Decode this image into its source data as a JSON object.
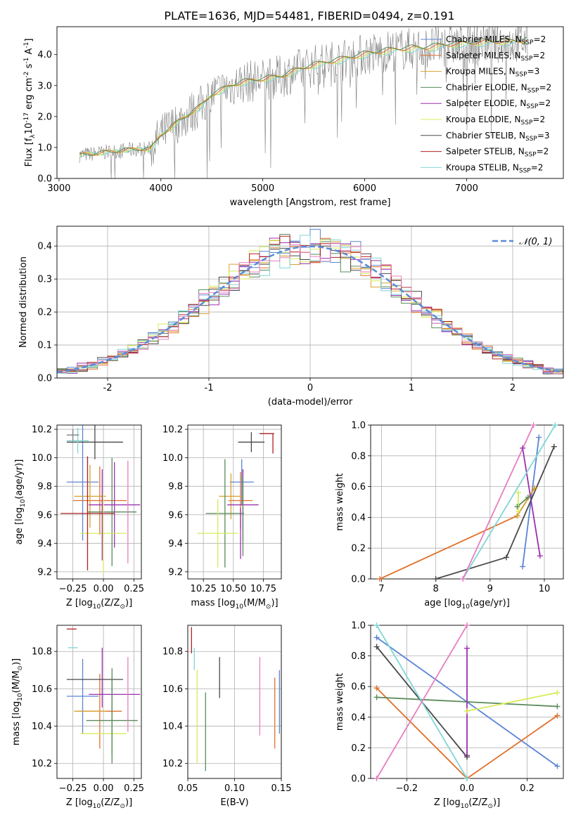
{
  "figure": {
    "title": "PLATE=1636, MJD=54481, FIBERID=0494, z=0.191"
  },
  "colors": {
    "chabrier_miles": "#5b84d6",
    "salpeter_miles": "#e0702b",
    "kroupa_miles": "#d9a030",
    "chabrier_elodie": "#5a8a5a",
    "salpeter_elodie": "#9b30b0",
    "kroupa_elodie": "#d6ec5a",
    "chabrier_stelib": "#4a4a4a",
    "salpeter_stelib": "#b02020",
    "kroupa_stelib": "#80d6d6",
    "pink": "#e57fbf",
    "data_grey": "#808080",
    "gaussian": "#5b8bd6"
  },
  "chart_data": [
    {
      "id": "spectrum",
      "type": "line",
      "title": "PLATE=1636, MJD=54481, FIBERID=0494, z=0.191",
      "xlabel": "wavelength [Angstrom, rest frame]",
      "ylabel": "Flux [f$_λ$10$^{-17}$ erg cm$^{-2}$ s$^{-1}$ A$^{-1}$]",
      "xlim": [
        2980,
        7950
      ],
      "ylim": [
        0,
        4.9
      ],
      "xticks": [
        3000,
        4000,
        5000,
        6000,
        7000
      ],
      "yticks": [
        0,
        1,
        2,
        3,
        4
      ],
      "grid": false,
      "legend_position": "top-right",
      "legend": [
        {
          "label": "Chabrier MILES, N",
          "sub": "SSP",
          "suffix": "=2",
          "color_key": "chabrier_miles"
        },
        {
          "label": "Salpeter MILES, N",
          "sub": "SSP",
          "suffix": "=2",
          "color_key": "salpeter_miles"
        },
        {
          "label": "Kroupa MILES, N",
          "sub": "SSP",
          "suffix": "=3",
          "color_key": "kroupa_miles"
        },
        {
          "label": "Chabrier ELODIE, N",
          "sub": "SSP",
          "suffix": "=2",
          "color_key": "chabrier_elodie"
        },
        {
          "label": "Salpeter ELODIE, N",
          "sub": "SSP",
          "suffix": "=2",
          "color_key": "salpeter_elodie"
        },
        {
          "label": "Kroupa ELODIE, N",
          "sub": "SSP",
          "suffix": "=2",
          "color_key": "kroupa_elodie"
        },
        {
          "label": "Chabrier STELIB, N",
          "sub": "SSP",
          "suffix": "=3",
          "color_key": "chabrier_stelib"
        },
        {
          "label": "Salpeter STELIB, N",
          "sub": "SSP",
          "suffix": "=2",
          "color_key": "salpeter_stelib"
        },
        {
          "label": "Kroupa STELIB, N",
          "sub": "SSP",
          "suffix": "=2",
          "color_key": "kroupa_stelib"
        }
      ],
      "model": {
        "x": [
          3200,
          3400,
          3600,
          3800,
          3900,
          4000,
          4200,
          4400,
          4500,
          4700,
          4800,
          5000,
          5200,
          5300,
          5500,
          5800,
          6000,
          6300,
          6500,
          6600,
          6800,
          7000,
          7200,
          7400,
          7600
        ],
        "y": [
          0.75,
          0.82,
          0.9,
          0.95,
          0.95,
          1.4,
          1.9,
          2.35,
          2.7,
          3.0,
          3.1,
          3.2,
          3.3,
          3.45,
          3.65,
          3.85,
          4.0,
          4.15,
          4.2,
          4.2,
          4.3,
          4.35,
          4.4,
          4.4,
          4.45
        ]
      }
    },
    {
      "id": "residuals",
      "type": "histogram",
      "xlabel": "(data-model)/error",
      "ylabel": "Normed distribution",
      "xlim": [
        -2.5,
        2.5
      ],
      "ylim": [
        0,
        0.46
      ],
      "xticks": [
        -2,
        -1,
        0,
        1,
        2
      ],
      "yticks": [
        0.0,
        0.1,
        0.2,
        0.3,
        0.4
      ],
      "grid": true,
      "legend_position": "top-right",
      "legend": [
        {
          "label": "𝒩(0, 1)",
          "color_key": "gaussian",
          "style": "dashed"
        }
      ],
      "bin_width": 0.1,
      "bin_start": -2.5
    },
    {
      "id": "age_vs_Z",
      "type": "errorbar",
      "xlabel": "Z [log$_{10}$(Z/Z$_⊙$)]",
      "ylabel": "age  [log$_{10}$(age/yr)]",
      "xlim": [
        -0.38,
        0.31
      ],
      "ylim": [
        9.15,
        10.23
      ],
      "xticks": [
        -0.25,
        0.0,
        0.25
      ],
      "xtick_labels": [
        "−0.25",
        "0.00",
        "0.25"
      ],
      "yticks": [
        9.2,
        9.4,
        9.6,
        9.8,
        10.0,
        10.2
      ],
      "grid": true,
      "points": [
        {
          "color_key": "chabrier_miles",
          "x": -0.17,
          "xerr": 0.13,
          "y": 9.83,
          "yerr": 0.41
        },
        {
          "color_key": "salpeter_miles",
          "x": -0.03,
          "xerr": 0.22,
          "y": 9.7,
          "yerr": 0.24
        },
        {
          "color_key": "kroupa_miles",
          "x": -0.11,
          "xerr": 0.13,
          "y": 9.73,
          "yerr": 0.22
        },
        {
          "color_key": "chabrier_elodie",
          "x": 0.07,
          "xerr": 0.2,
          "y": 9.62,
          "yerr": 0.38
        },
        {
          "color_key": "salpeter_elodie",
          "x": 0.09,
          "xerr": 0.21,
          "y": 9.67,
          "yerr": 0.3
        },
        {
          "color_key": "kroupa_elodie",
          "x": 0.0,
          "xerr": 0.19,
          "y": 9.47,
          "yerr": 0.28
        },
        {
          "color_key": "chabrier_stelib",
          "x": -0.07,
          "xerr": 0.23,
          "y": 10.11,
          "yerr": 0.12
        },
        {
          "color_key": "salpeter_stelib",
          "x": -0.13,
          "xerr": 0.22,
          "y": 9.61,
          "yerr": 0.4
        },
        {
          "color_key": "kroupa_stelib",
          "x": -0.21,
          "xerr": 0.09,
          "y": 10.12,
          "yerr": 0.09
        },
        {
          "color_key": "pink",
          "x": 0.2,
          "xerr": 0.0,
          "y": 9.62,
          "yerr": 0.36
        },
        {
          "color_key": "data_grey",
          "x": -0.25,
          "xerr": 0.05,
          "y": 10.16,
          "yerr": 0.04
        },
        {
          "color_key": "salpeter_elodie",
          "x": -0.01,
          "xerr": 0.0,
          "y": 9.6,
          "yerr": 0.32
        }
      ]
    },
    {
      "id": "age_vs_mass",
      "type": "errorbar",
      "xlabel": "mass [log$_{10}$(M/M$_⊙$)]",
      "ylabel": "",
      "xlim": [
        10.12,
        10.9
      ],
      "ylim": [
        9.15,
        10.23
      ],
      "xticks": [
        10.25,
        10.5,
        10.75
      ],
      "xtick_labels": [
        "10.25",
        "10.50",
        "10.75"
      ],
      "yticks": [
        9.2,
        9.4,
        9.6,
        9.8,
        10.0,
        10.2
      ],
      "grid": true,
      "points": [
        {
          "color_key": "chabrier_miles",
          "x": 10.57,
          "xerr": 0.1,
          "y": 9.83,
          "yerr": 0.16
        },
        {
          "color_key": "salpeter_miles",
          "x": 10.56,
          "xerr": 0.1,
          "y": 9.7,
          "yerr": 0.2
        },
        {
          "color_key": "kroupa_miles",
          "x": 10.48,
          "xerr": 0.1,
          "y": 9.73,
          "yerr": 0.16
        },
        {
          "color_key": "chabrier_elodie",
          "x": 10.43,
          "xerr": 0.16,
          "y": 9.61,
          "yerr": 0.38
        },
        {
          "color_key": "salpeter_elodie",
          "x": 10.58,
          "xerr": 0.13,
          "y": 9.67,
          "yerr": 0.25
        },
        {
          "color_key": "kroupa_elodie",
          "x": 10.37,
          "xerr": 0.17,
          "y": 9.47,
          "yerr": 0.24
        },
        {
          "color_key": "chabrier_stelib",
          "x": 10.65,
          "xerr": 0.11,
          "y": 10.11,
          "yerr": 0.07
        },
        {
          "color_key": "salpeter_stelib",
          "x": 10.83,
          "xerr": 0.0,
          "y": 10.1,
          "yerr": 0.07
        },
        {
          "color_key": "kroupa_stelib",
          "x": 10.77,
          "xerr": 0.06,
          "y": 10.17,
          "yerr": 0.0
        },
        {
          "color_key": "salpeter_stelib",
          "x": 10.78,
          "xerr": 0.06,
          "y": 10.17,
          "yerr": 0.0
        },
        {
          "color_key": "chabrier_elodie",
          "x": 10.58,
          "xerr": 0.0,
          "y": 9.59,
          "yerr": 0.28
        },
        {
          "color_key": "salpeter_elodie",
          "x": 10.56,
          "xerr": 0.0,
          "y": 9.47,
          "yerr": 0.18
        }
      ]
    },
    {
      "id": "weight_vs_age",
      "type": "line",
      "xlabel": "age  [log$_{10}$(age/yr)]",
      "ylabel": "mass weight",
      "xlim": [
        6.8,
        10.35
      ],
      "ylim": [
        0,
        1.0
      ],
      "xticks": [
        7,
        8,
        9,
        10
      ],
      "yticks": [
        0.0,
        0.2,
        0.4,
        0.6,
        0.8,
        1.0
      ],
      "grid": true,
      "series": [
        {
          "color_key": "chabrier_miles",
          "x": [
            9.6,
            9.9
          ],
          "y": [
            0.08,
            0.92
          ]
        },
        {
          "color_key": "salpeter_miles",
          "x": [
            6.97,
            9.5,
            9.82
          ],
          "y": [
            0.0,
            0.41,
            0.59
          ]
        },
        {
          "color_key": "kroupa_miles",
          "x": [
            9.5,
            9.82
          ],
          "y": [
            0.41,
            0.59
          ]
        },
        {
          "color_key": "chabrier_elodie",
          "x": [
            9.5,
            9.7
          ],
          "y": [
            0.47,
            0.53
          ]
        },
        {
          "color_key": "salpeter_elodie",
          "x": [
            9.6,
            9.92
          ],
          "y": [
            0.85,
            0.15
          ]
        },
        {
          "color_key": "kroupa_elodie",
          "x": [
            9.52,
            9.52
          ],
          "y": [
            0.44,
            0.56
          ]
        },
        {
          "color_key": "chabrier_stelib",
          "x": [
            8.0,
            9.3,
            10.18
          ],
          "y": [
            0.0,
            0.14,
            0.86
          ]
        },
        {
          "color_key": "kroupa_stelib",
          "x": [
            8.5,
            10.2
          ],
          "y": [
            0.0,
            1.0
          ]
        },
        {
          "color_key": "pink",
          "x": [
            8.5,
            9.8
          ],
          "y": [
            0.0,
            1.0
          ]
        }
      ]
    },
    {
      "id": "mass_vs_Z",
      "type": "errorbar",
      "xlabel": "Z [log$_{10}$(Z/Z$_⊙$)]",
      "ylabel": "mass [log$_{10}$(M/M$_⊙$)]",
      "xlim": [
        -0.38,
        0.31
      ],
      "ylim": [
        10.12,
        10.94
      ],
      "xticks": [
        -0.25,
        0.0,
        0.25
      ],
      "xtick_labels": [
        "−0.25",
        "0.00",
        "0.25"
      ],
      "yticks": [
        10.2,
        10.4,
        10.6,
        10.8
      ],
      "grid": true,
      "points": [
        {
          "color_key": "chabrier_miles",
          "x": -0.17,
          "xerr": 0.13,
          "y": 10.56,
          "yerr": 0.2
        },
        {
          "color_key": "salpeter_miles",
          "x": -0.03,
          "xerr": 0.18,
          "y": 10.48,
          "yerr": 0.2
        },
        {
          "color_key": "kroupa_miles",
          "x": -0.11,
          "xerr": 0.13,
          "y": 10.48,
          "yerr": 0.0
        },
        {
          "color_key": "chabrier_elodie",
          "x": 0.07,
          "xerr": 0.21,
          "y": 10.43,
          "yerr": 0.23
        },
        {
          "color_key": "salpeter_elodie",
          "x": 0.09,
          "xerr": 0.21,
          "y": 10.57,
          "yerr": 0.0
        },
        {
          "color_key": "kroupa_elodie",
          "x": 0.0,
          "xerr": 0.19,
          "y": 10.36,
          "yerr": 0.0
        },
        {
          "color_key": "chabrier_stelib",
          "x": -0.07,
          "xerr": 0.23,
          "y": 10.65,
          "yerr": 0.0
        },
        {
          "color_key": "salpeter_stelib",
          "x": -0.26,
          "xerr": 0.04,
          "y": 10.92,
          "yerr": 0.0
        },
        {
          "color_key": "kroupa_stelib",
          "x": -0.25,
          "xerr": 0.04,
          "y": 10.82,
          "yerr": 0.0
        },
        {
          "color_key": "pink",
          "x": 0.2,
          "xerr": 0.0,
          "y": 10.57,
          "yerr": 0.2
        },
        {
          "color_key": "salpeter_elodie",
          "x": -0.01,
          "xerr": 0.0,
          "y": 10.66,
          "yerr": 0.16
        },
        {
          "color_key": "chabrier_elodie",
          "x": 0.07,
          "xerr": 0.0,
          "y": 10.48,
          "yerr": 0.23
        }
      ]
    },
    {
      "id": "mass_vs_ebv",
      "type": "errorbar",
      "xlabel": "E(B-V)",
      "ylabel": "",
      "xlim": [
        0.05,
        0.15
      ],
      "ylim": [
        10.12,
        10.94
      ],
      "xticks": [
        0.05,
        0.1,
        0.15
      ],
      "xtick_labels": [
        "0.05",
        "0.10",
        "0.15"
      ],
      "yticks": [
        10.2,
        10.4,
        10.6,
        10.8
      ],
      "grid": true,
      "points": [
        {
          "color_key": "chabrier_miles",
          "x": 0.148,
          "xerr": 0.0,
          "y": 10.53,
          "yerr": 0.17
        },
        {
          "color_key": "salpeter_miles",
          "x": 0.143,
          "xerr": 0.0,
          "y": 10.47,
          "yerr": 0.19
        },
        {
          "color_key": "kroupa_elodie",
          "x": 0.06,
          "xerr": 0.0,
          "y": 10.45,
          "yerr": 0.25
        },
        {
          "color_key": "chabrier_elodie",
          "x": 0.069,
          "xerr": 0.0,
          "y": 10.37,
          "yerr": 0.21
        },
        {
          "color_key": "chabrier_stelib",
          "x": 0.084,
          "xerr": 0.0,
          "y": 10.66,
          "yerr": 0.11
        },
        {
          "color_key": "salpeter_stelib",
          "x": 0.054,
          "xerr": 0.0,
          "y": 10.86,
          "yerr": 0.07
        },
        {
          "color_key": "kroupa_stelib",
          "x": 0.057,
          "xerr": 0.0,
          "y": 10.76,
          "yerr": 0.06
        },
        {
          "color_key": "pink",
          "x": 0.127,
          "xerr": 0.0,
          "y": 10.56,
          "yerr": 0.21
        }
      ]
    },
    {
      "id": "weight_vs_Z",
      "type": "line",
      "xlabel": "Z [log$_{10}$(Z/Z$_⊙$)]",
      "ylabel": "mass weight",
      "xlim": [
        -0.32,
        0.32
      ],
      "ylim": [
        0,
        1.0
      ],
      "xticks": [
        -0.2,
        0.0,
        0.2
      ],
      "xtick_labels": [
        "−0.2",
        "0.0",
        "0.2"
      ],
      "yticks": [
        0.0,
        0.2,
        0.4,
        0.6,
        0.8,
        1.0
      ],
      "grid": true,
      "series": [
        {
          "color_key": "chabrier_miles",
          "x": [
            -0.3,
            0.3
          ],
          "y": [
            0.92,
            0.08
          ]
        },
        {
          "color_key": "salpeter_miles",
          "x": [
            -0.3,
            0.0,
            0.3
          ],
          "y": [
            0.59,
            0.0,
            0.41
          ]
        },
        {
          "color_key": "chabrier_elodie",
          "x": [
            -0.3,
            0.3
          ],
          "y": [
            0.53,
            0.47
          ]
        },
        {
          "color_key": "salpeter_elodie",
          "x": [
            0.0,
            0.0
          ],
          "y": [
            0.85,
            0.15
          ]
        },
        {
          "color_key": "kroupa_elodie",
          "x": [
            0.0,
            0.3
          ],
          "y": [
            0.44,
            0.56
          ]
        },
        {
          "color_key": "chabrier_stelib",
          "x": [
            -0.3,
            0.0
          ],
          "y": [
            0.86,
            0.14
          ]
        },
        {
          "color_key": "kroupa_stelib",
          "x": [
            -0.3,
            0.0
          ],
          "y": [
            1.0,
            0.0
          ]
        },
        {
          "color_key": "pink",
          "x": [
            -0.3,
            0.0
          ],
          "y": [
            0.0,
            1.0
          ]
        }
      ]
    }
  ]
}
